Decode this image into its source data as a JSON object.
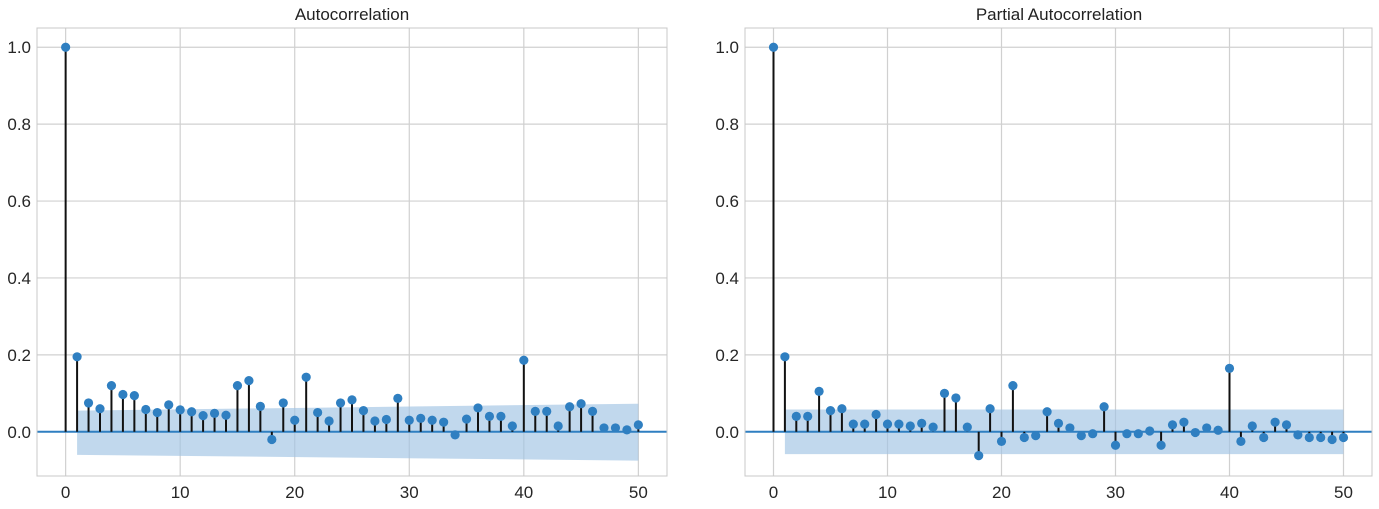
{
  "colors": {
    "marker": "#2f7fc1",
    "stem": "#111111",
    "baseline": "#2f7fc1",
    "band": "#9fc3e3",
    "grid": "#d0d0d0",
    "frame": "#c8c8c8"
  },
  "chart_data": [
    {
      "type": "stem",
      "title": "Autocorrelation",
      "xlim": [
        -2.5,
        52.5
      ],
      "ylim": [
        -0.115,
        1.05
      ],
      "xticks": [
        0,
        10,
        20,
        30,
        40,
        50
      ],
      "yticks": [
        0.0,
        0.2,
        0.4,
        0.6,
        0.8,
        1.0
      ],
      "xtick_labels": [
        "0",
        "10",
        "20",
        "30",
        "40",
        "50"
      ],
      "ytick_labels": [
        "0.0",
        "0.2",
        "0.4",
        "0.6",
        "0.8",
        "1.0"
      ],
      "grid": true,
      "lags": [
        0,
        1,
        2,
        3,
        4,
        5,
        6,
        7,
        8,
        9,
        10,
        11,
        12,
        13,
        14,
        15,
        16,
        17,
        18,
        19,
        20,
        21,
        22,
        23,
        24,
        25,
        26,
        27,
        28,
        29,
        30,
        31,
        32,
        33,
        34,
        35,
        36,
        37,
        38,
        39,
        40,
        41,
        42,
        43,
        44,
        45,
        46,
        47,
        48,
        49,
        50
      ],
      "values": [
        1.0,
        0.195,
        0.075,
        0.06,
        0.12,
        0.097,
        0.094,
        0.058,
        0.05,
        0.07,
        0.057,
        0.052,
        0.042,
        0.048,
        0.043,
        0.12,
        0.133,
        0.066,
        -0.02,
        0.075,
        0.03,
        0.142,
        0.05,
        0.028,
        0.075,
        0.083,
        0.055,
        0.028,
        0.032,
        0.087,
        0.03,
        0.035,
        0.03,
        0.025,
        -0.008,
        0.033,
        0.062,
        0.04,
        0.04,
        0.015,
        0.186,
        0.053,
        0.053,
        0.015,
        0.065,
        0.073,
        0.053,
        0.01,
        0.01,
        0.005,
        0.018
      ],
      "confidence_band": {
        "lags": [
          1,
          50
        ],
        "upper": [
          0.055,
          0.073
        ],
        "lower": [
          -0.06,
          -0.075
        ]
      }
    },
    {
      "type": "stem",
      "title": "Partial Autocorrelation",
      "xlim": [
        -2.5,
        52.5
      ],
      "ylim": [
        -0.115,
        1.05
      ],
      "xticks": [
        0,
        10,
        20,
        30,
        40,
        50
      ],
      "yticks": [
        0.0,
        0.2,
        0.4,
        0.6,
        0.8,
        1.0
      ],
      "xtick_labels": [
        "0",
        "10",
        "20",
        "30",
        "40",
        "50"
      ],
      "ytick_labels": [
        "0.0",
        "0.2",
        "0.4",
        "0.6",
        "0.8",
        "1.0"
      ],
      "grid": true,
      "lags": [
        0,
        1,
        2,
        3,
        4,
        5,
        6,
        7,
        8,
        9,
        10,
        11,
        12,
        13,
        14,
        15,
        16,
        17,
        18,
        19,
        20,
        21,
        22,
        23,
        24,
        25,
        26,
        27,
        28,
        29,
        30,
        31,
        32,
        33,
        34,
        35,
        36,
        37,
        38,
        39,
        40,
        41,
        42,
        43,
        44,
        45,
        46,
        47,
        48,
        49,
        50
      ],
      "values": [
        1.0,
        0.195,
        0.04,
        0.04,
        0.105,
        0.055,
        0.06,
        0.02,
        0.02,
        0.045,
        0.02,
        0.02,
        0.015,
        0.022,
        0.012,
        0.1,
        0.088,
        0.012,
        -0.062,
        0.06,
        -0.025,
        0.12,
        -0.015,
        -0.01,
        0.052,
        0.022,
        0.01,
        -0.01,
        -0.005,
        0.065,
        -0.035,
        -0.005,
        -0.005,
        0.002,
        -0.035,
        0.018,
        0.025,
        -0.002,
        0.01,
        0.004,
        0.165,
        -0.025,
        0.015,
        -0.015,
        0.025,
        0.018,
        -0.008,
        -0.015,
        -0.015,
        -0.02,
        -0.015
      ],
      "confidence_band": {
        "lags": [
          1,
          50
        ],
        "upper": [
          0.058,
          0.058
        ],
        "lower": [
          -0.058,
          -0.058
        ]
      }
    }
  ]
}
